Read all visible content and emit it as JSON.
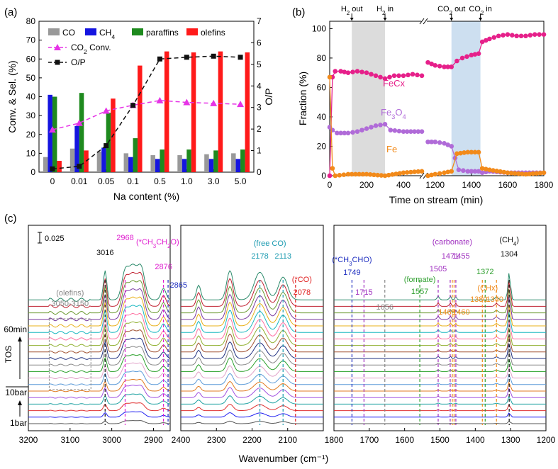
{
  "chart_data": [
    {
      "panel": "a",
      "panel_label": "(a)",
      "type": "bar",
      "categories": [
        "0",
        "0.01",
        "0.05",
        "0.1",
        "0.5",
        "1.0",
        "3.0",
        "5.0"
      ],
      "xlabel": "Na content (%)",
      "ylabel": "Conv. & Sel. (%)",
      "y2label": "O/P",
      "ylim": [
        0,
        80
      ],
      "y2lim": [
        0,
        7
      ],
      "yticks": [
        "0",
        "10",
        "20",
        "30",
        "40",
        "50",
        "60",
        "70",
        "80"
      ],
      "y2ticks": [
        "0",
        "1",
        "2",
        "3",
        "4",
        "5",
        "6",
        "7"
      ],
      "legend_placement": "top-left",
      "series": [
        {
          "name": "CO",
          "kind": "bar",
          "color": "#999999",
          "values": [
            8,
            12.5,
            11,
            10,
            9,
            9,
            9.5,
            10
          ]
        },
        {
          "name": "CH4",
          "kind": "bar",
          "color": "#1515e0",
          "values": [
            41,
            24.5,
            13,
            8,
            7,
            7,
            7,
            7
          ]
        },
        {
          "name": "paraffins",
          "kind": "bar",
          "color": "#1e8a1e",
          "values": [
            40,
            42,
            31.5,
            18,
            12,
            12,
            11.5,
            12
          ]
        },
        {
          "name": "olefins",
          "kind": "bar",
          "color": "#ff1a1a",
          "values": [
            6,
            11.5,
            39,
            56.5,
            64,
            63.5,
            64,
            63.5
          ]
        },
        {
          "name": "CO2 Conv.",
          "kind": "line",
          "axis": "left",
          "color": "#e633e6",
          "values": [
            22.5,
            26,
            32.5,
            35.5,
            38,
            37,
            36.5,
            36
          ]
        },
        {
          "name": "O/P",
          "kind": "line",
          "axis": "right",
          "color": "#111111",
          "values": [
            0.15,
            0.27,
            1.23,
            3.1,
            5.25,
            5.33,
            5.38,
            5.33
          ]
        }
      ],
      "legend": [
        "CO",
        "CH4",
        "paraffins",
        "olefins",
        "CO2 Conv.",
        "O/P"
      ]
    },
    {
      "panel": "b",
      "panel_label": "(b)",
      "type": "line",
      "xlabel": "Time on stream (min)",
      "ylabel": "Fraction (%)",
      "ylim": [
        0,
        105
      ],
      "x_segments": [
        [
          0,
          500
        ],
        [
          1150,
          1800
        ]
      ],
      "xticks": [
        "0",
        "200",
        "400",
        "1200",
        "1400",
        "1600",
        "1800"
      ],
      "yticks": [
        "0",
        "20",
        "40",
        "60",
        "80",
        "100"
      ],
      "shaded_regions": [
        {
          "from": 120,
          "to": 300,
          "color": "#dcdcdc"
        },
        {
          "from": 1290,
          "to": 1450,
          "color": "#cddff0"
        }
      ],
      "events": [
        {
          "label": "H2 out",
          "x": 120
        },
        {
          "label": "H2 in",
          "x": 300
        },
        {
          "label": "CO2 out",
          "x": 1290
        },
        {
          "label": "CO2 in",
          "x": 1450
        }
      ],
      "series": [
        {
          "name": "FeCx",
          "color": "#e6208a",
          "points": [
            [
              0,
              0
            ],
            [
              15,
              67
            ],
            [
              30,
              71
            ],
            [
              60,
              71
            ],
            [
              100,
              70
            ],
            [
              150,
              71
            ],
            [
              200,
              70
            ],
            [
              250,
              68
            ],
            [
              300,
              66
            ],
            [
              350,
              68
            ],
            [
              400,
              68
            ],
            [
              450,
              69
            ],
            [
              500,
              68
            ],
            [
              1160,
              77
            ],
            [
              1200,
              75
            ],
            [
              1250,
              74
            ],
            [
              1290,
              74
            ],
            [
              1320,
              78
            ],
            [
              1350,
              80
            ],
            [
              1400,
              82
            ],
            [
              1440,
              83
            ],
            [
              1460,
              91
            ],
            [
              1500,
              93
            ],
            [
              1550,
              95
            ],
            [
              1600,
              96
            ],
            [
              1650,
              95
            ],
            [
              1700,
              95
            ],
            [
              1750,
              96
            ],
            [
              1800,
              96
            ]
          ]
        },
        {
          "name": "Fe3O4",
          "color": "#b06bd8",
          "points": [
            [
              0,
              33
            ],
            [
              15,
              31
            ],
            [
              40,
              29
            ],
            [
              100,
              29
            ],
            [
              150,
              30
            ],
            [
              200,
              32
            ],
            [
              250,
              34
            ],
            [
              300,
              35
            ],
            [
              330,
              31
            ],
            [
              400,
              30
            ],
            [
              500,
              30
            ],
            [
              1160,
              23
            ],
            [
              1200,
              23
            ],
            [
              1250,
              22
            ],
            [
              1290,
              20
            ],
            [
              1310,
              12
            ],
            [
              1330,
              4
            ],
            [
              1380,
              3
            ],
            [
              1440,
              3
            ],
            [
              1460,
              2
            ],
            [
              1500,
              3
            ],
            [
              1600,
              2
            ],
            [
              1700,
              2
            ],
            [
              1800,
              2
            ]
          ]
        },
        {
          "name": "Fe",
          "color": "#f28a1a",
          "points": [
            [
              0,
              67
            ],
            [
              15,
              5
            ],
            [
              30,
              0
            ],
            [
              100,
              1
            ],
            [
              200,
              1
            ],
            [
              300,
              0
            ],
            [
              400,
              2
            ],
            [
              500,
              3
            ],
            [
              1160,
              0
            ],
            [
              1200,
              1
            ],
            [
              1250,
              2
            ],
            [
              1290,
              3
            ],
            [
              1320,
              15
            ],
            [
              1380,
              16
            ],
            [
              1440,
              16
            ],
            [
              1460,
              5
            ],
            [
              1500,
              4
            ],
            [
              1600,
              2
            ],
            [
              1700,
              1
            ],
            [
              1800,
              2
            ]
          ]
        }
      ],
      "legend": [
        "FeCx",
        "Fe3O4",
        "Fe"
      ]
    },
    {
      "panel": "c",
      "panel_label": "(c)",
      "type": "line",
      "xlabel": "Wavenumber (cm-1)",
      "x_reversed": true,
      "x_segments": [
        [
          3200,
          2860
        ],
        [
          2400,
          2000
        ],
        [
          1800,
          1200
        ]
      ],
      "xticks": [
        "3200",
        "3100",
        "3000",
        "2900",
        "2400",
        "2300",
        "2200",
        "2100",
        "1800",
        "1700",
        "1600",
        "1500",
        "1400",
        "1300",
        "1200"
      ],
      "spectra_count": 20,
      "spectrum_colors": [
        "#555555",
        "#1e1ef0",
        "#e03030",
        "#1aa0a0",
        "#a050e0",
        "#e07a20",
        "#5a9ad8",
        "#e0a0c8",
        "#2aa02a",
        "#888888",
        "#203080",
        "#a05030",
        "#90b030",
        "#ff6fa0",
        "#1ab8c0",
        "#e8b018",
        "#7a3aa0",
        "#6a9a30",
        "#c02030",
        "#2a8a6a"
      ],
      "left_labels": [
        "60min",
        "TOS",
        "10bar",
        "1bar"
      ],
      "scale_bar": "0.025",
      "annotations": [
        {
          "label": "3016",
          "x": 3016,
          "color": "#111111"
        },
        {
          "label": "2968",
          "x": 2968,
          "color": "#e020d0"
        },
        {
          "label": "(*CH3CH2O)",
          "x": 2920,
          "color": "#e020d0"
        },
        {
          "label": "2876",
          "x": 2876,
          "color": "#e020d0"
        },
        {
          "label": "2865",
          "x": 2865,
          "color": "#2030c0"
        },
        {
          "label": "(olefins)",
          "x": 3100,
          "color": "#888888"
        },
        {
          "label": "3050-3150",
          "x": 3100,
          "color": "#888888"
        },
        {
          "label": "(free CO)",
          "x": 2150,
          "color": "#1a9ab0"
        },
        {
          "label": "2178",
          "x": 2178,
          "color": "#1a9ab0"
        },
        {
          "label": "2113",
          "x": 2113,
          "color": "#1a9ab0"
        },
        {
          "label": "(*CO)",
          "x": 2078,
          "color": "#e02020"
        },
        {
          "label": "2078",
          "x": 2078,
          "color": "#e02020"
        },
        {
          "label": "(*CH3CHO)",
          "x": 1749,
          "color": "#2030c0"
        },
        {
          "label": "1749",
          "x": 1749,
          "color": "#2030c0"
        },
        {
          "label": "1715",
          "x": 1715,
          "color": "#a030c0"
        },
        {
          "label": "1656",
          "x": 1656,
          "color": "#888888"
        },
        {
          "label": "(formate)",
          "x": 1557,
          "color": "#30a030"
        },
        {
          "label": "1557",
          "x": 1557,
          "color": "#30a030"
        },
        {
          "label": "1505",
          "x": 1505,
          "color": "#a030c0"
        },
        {
          "label": "(carbonate)",
          "x": 1465,
          "color": "#a030c0"
        },
        {
          "label": "1471",
          "x": 1471,
          "color": "#a030c0"
        },
        {
          "label": "1455",
          "x": 1455,
          "color": "#a030c0"
        },
        {
          "label": "1465",
          "x": 1465,
          "color": "#f08a1a"
        },
        {
          "label": "1460",
          "x": 1460,
          "color": "#f08a1a"
        },
        {
          "label": "1372",
          "x": 1372,
          "color": "#30a030"
        },
        {
          "label": "(CHx)",
          "x": 1360,
          "color": "#f08a1a"
        },
        {
          "label": "1380",
          "x": 1380,
          "color": "#f08a1a"
        },
        {
          "label": "1340",
          "x": 1340,
          "color": "#f08a1a"
        },
        {
          "label": "(CH4)",
          "x": 1304,
          "color": "#111111"
        },
        {
          "label": "1304",
          "x": 1304,
          "color": "#111111"
        }
      ]
    }
  ]
}
